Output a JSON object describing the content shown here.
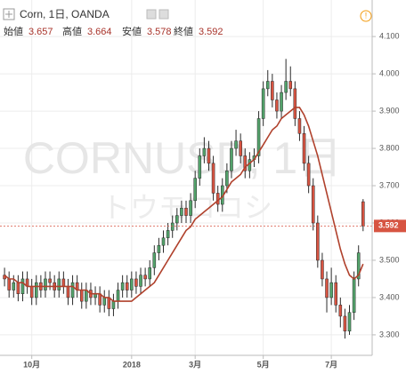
{
  "chart_data": {
    "type": "candlestick",
    "title": "Corn, 1日, OANDA",
    "watermark": "CORNUSD, 1日",
    "watermark_sub": "トウモロコシ",
    "ohlc_labels": [
      "始値",
      "高値",
      "安値",
      "終値"
    ],
    "open": [
      3.46,
      3.45,
      3.42,
      3.44,
      3.41,
      3.45,
      3.43,
      3.4,
      3.44,
      3.42,
      3.45,
      3.44,
      3.42,
      3.45,
      3.43,
      3.4,
      3.44,
      3.42,
      3.39,
      3.42,
      3.4,
      3.41,
      3.38,
      3.4,
      3.37,
      3.39,
      3.42,
      3.44,
      3.42,
      3.45,
      3.43,
      3.46,
      3.45,
      3.48,
      3.52,
      3.54,
      3.56,
      3.58,
      3.6,
      3.62,
      3.64,
      3.62,
      3.66,
      3.72,
      3.78,
      3.8,
      3.76,
      3.68,
      3.65,
      3.7,
      3.74,
      3.8,
      3.82,
      3.78,
      3.74,
      3.77,
      3.78,
      3.88,
      3.96,
      3.98,
      3.93,
      3.9,
      3.95,
      3.98,
      3.96,
      3.88,
      3.84,
      3.76,
      3.7,
      3.6,
      3.5,
      3.45,
      3.4,
      3.44,
      3.38,
      3.35,
      3.31,
      3.36,
      3.45,
      3.657
    ],
    "high": [
      3.48,
      3.47,
      3.46,
      3.46,
      3.47,
      3.47,
      3.45,
      3.46,
      3.46,
      3.47,
      3.47,
      3.46,
      3.47,
      3.47,
      3.45,
      3.46,
      3.46,
      3.44,
      3.44,
      3.44,
      3.43,
      3.43,
      3.42,
      3.42,
      3.41,
      3.44,
      3.46,
      3.46,
      3.47,
      3.47,
      3.48,
      3.48,
      3.5,
      3.54,
      3.56,
      3.58,
      3.6,
      3.62,
      3.64,
      3.66,
      3.66,
      3.68,
      3.74,
      3.8,
      3.83,
      3.82,
      3.78,
      3.7,
      3.72,
      3.76,
      3.82,
      3.85,
      3.84,
      3.8,
      3.79,
      3.8,
      3.9,
      3.98,
      4.01,
      4.0,
      3.95,
      3.97,
      4.04,
      4.02,
      3.98,
      3.9,
      3.86,
      3.78,
      3.72,
      3.62,
      3.52,
      3.47,
      3.48,
      3.46,
      3.4,
      3.37,
      3.38,
      3.47,
      3.54,
      3.664
    ],
    "low": [
      3.43,
      3.4,
      3.4,
      3.39,
      3.39,
      3.41,
      3.38,
      3.38,
      3.4,
      3.4,
      3.42,
      3.4,
      3.4,
      3.41,
      3.38,
      3.38,
      3.4,
      3.37,
      3.37,
      3.38,
      3.38,
      3.36,
      3.36,
      3.35,
      3.35,
      3.37,
      3.4,
      3.4,
      3.4,
      3.41,
      3.41,
      3.43,
      3.43,
      3.46,
      3.5,
      3.52,
      3.54,
      3.56,
      3.58,
      3.6,
      3.6,
      3.6,
      3.64,
      3.7,
      3.76,
      3.74,
      3.66,
      3.63,
      3.63,
      3.68,
      3.72,
      3.78,
      3.76,
      3.72,
      3.72,
      3.75,
      3.76,
      3.86,
      3.94,
      3.91,
      3.88,
      3.88,
      3.93,
      3.94,
      3.86,
      3.82,
      3.74,
      3.68,
      3.58,
      3.48,
      3.43,
      3.36,
      3.38,
      3.36,
      3.32,
      3.29,
      3.3,
      3.34,
      3.43,
      3.578
    ],
    "close": [
      3.45,
      3.42,
      3.44,
      3.41,
      3.45,
      3.43,
      3.4,
      3.44,
      3.42,
      3.45,
      3.44,
      3.42,
      3.45,
      3.43,
      3.4,
      3.44,
      3.42,
      3.39,
      3.42,
      3.4,
      3.41,
      3.38,
      3.4,
      3.37,
      3.39,
      3.42,
      3.44,
      3.42,
      3.45,
      3.43,
      3.46,
      3.45,
      3.48,
      3.52,
      3.54,
      3.56,
      3.58,
      3.6,
      3.62,
      3.64,
      3.62,
      3.66,
      3.72,
      3.78,
      3.8,
      3.76,
      3.68,
      3.65,
      3.7,
      3.74,
      3.8,
      3.82,
      3.78,
      3.74,
      3.77,
      3.78,
      3.88,
      3.96,
      3.98,
      3.93,
      3.9,
      3.95,
      3.98,
      3.96,
      3.88,
      3.84,
      3.76,
      3.7,
      3.6,
      3.5,
      3.45,
      3.4,
      3.44,
      3.38,
      3.35,
      3.31,
      3.36,
      3.45,
      3.52,
      3.592
    ],
    "ma": {
      "color": "#b0412c",
      "values": [
        3.46,
        3.45,
        3.45,
        3.44,
        3.44,
        3.43,
        3.43,
        3.43,
        3.43,
        3.43,
        3.43,
        3.43,
        3.43,
        3.43,
        3.43,
        3.43,
        3.42,
        3.42,
        3.42,
        3.41,
        3.41,
        3.41,
        3.4,
        3.4,
        3.39,
        3.39,
        3.39,
        3.39,
        3.39,
        3.4,
        3.41,
        3.42,
        3.43,
        3.44,
        3.46,
        3.48,
        3.5,
        3.52,
        3.54,
        3.56,
        3.58,
        3.59,
        3.61,
        3.62,
        3.63,
        3.64,
        3.65,
        3.66,
        3.67,
        3.69,
        3.71,
        3.72,
        3.73,
        3.75,
        3.76,
        3.77,
        3.79,
        3.81,
        3.83,
        3.85,
        3.86,
        3.88,
        3.89,
        3.9,
        3.91,
        3.91,
        3.89,
        3.86,
        3.82,
        3.78,
        3.73,
        3.68,
        3.63,
        3.58,
        3.53,
        3.49,
        3.46,
        3.45,
        3.46,
        3.49
      ]
    },
    "up_color": "#53a36b",
    "down_color": "#d75442",
    "wick_color": "#2b2b2b",
    "last_color": "#d75442",
    "xlim": [
      -1,
      81
    ],
    "xticks": [
      {
        "value": 6,
        "label": "10月"
      },
      {
        "value": 28,
        "label": "2018"
      },
      {
        "value": 42,
        "label": "3月"
      },
      {
        "value": 57,
        "label": "5月"
      },
      {
        "value": 72,
        "label": "7月"
      }
    ],
    "ylim": [
      3.245,
      4.198
    ],
    "yticks": [
      {
        "value": 3.3,
        "label": "3.300"
      },
      {
        "value": 3.4,
        "label": "3.400"
      },
      {
        "value": 3.5,
        "label": "3.500"
      },
      {
        "value": 3.6,
        "label": "3.600"
      },
      {
        "value": 3.7,
        "label": "3.700"
      },
      {
        "value": 3.8,
        "label": "3.800"
      },
      {
        "value": 3.9,
        "label": "3.900"
      },
      {
        "value": 4.0,
        "label": "4.000"
      },
      {
        "value": 4.1,
        "label": "4.100"
      }
    ],
    "grid": true
  }
}
